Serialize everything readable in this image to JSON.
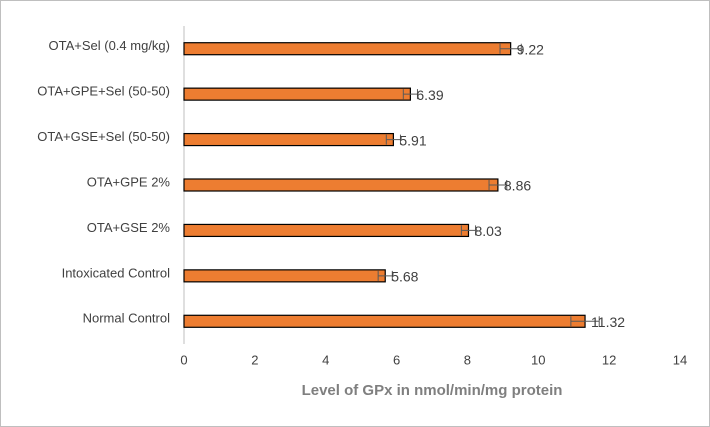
{
  "chart_data": {
    "type": "bar",
    "orientation": "horizontal",
    "x_label": "Level of GPx in nmol/min/mg protein",
    "categories": [
      "OTA+Sel (0.4 mg/kg)",
      "OTA+GPE+Sel (50-50)",
      "OTA+GSE+Sel (50-50)",
      "OTA+GPE 2%",
      "OTA+GSE 2%",
      "Intoxicated Control",
      "Normal Control"
    ],
    "values": [
      9.22,
      6.39,
      5.91,
      8.86,
      8.03,
      5.68,
      11.32
    ],
    "errors": [
      0.3,
      0.2,
      0.2,
      0.25,
      0.2,
      0.2,
      0.4
    ],
    "color": "#ed7d31",
    "xlim": [
      0,
      14
    ],
    "xticks": [
      0,
      2,
      4,
      6,
      8,
      10,
      12,
      14
    ]
  }
}
